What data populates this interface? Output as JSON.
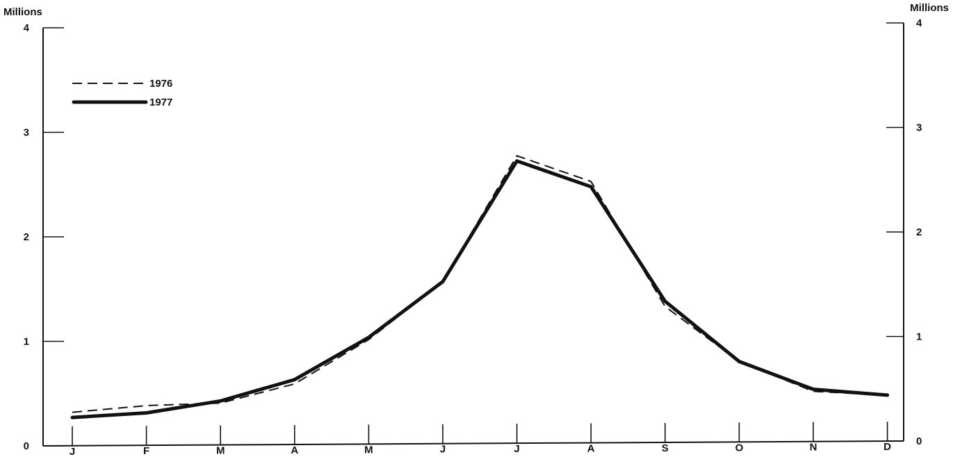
{
  "chart_data": {
    "type": "line",
    "categories": [
      "J",
      "F",
      "M",
      "A",
      "M",
      "J",
      "J",
      "A",
      "S",
      "O",
      "N",
      "D"
    ],
    "series": [
      {
        "name": "1976",
        "style": "dashed",
        "values": [
          0.32,
          0.38,
          0.4,
          0.58,
          1.0,
          1.55,
          2.75,
          2.5,
          1.3,
          0.77,
          0.48,
          0.44
        ]
      },
      {
        "name": "1977",
        "style": "solid",
        "values": [
          0.27,
          0.31,
          0.42,
          0.62,
          1.02,
          1.55,
          2.7,
          2.45,
          1.35,
          0.77,
          0.5,
          0.44
        ]
      }
    ],
    "y_ticks": [
      "0",
      "1",
      "2",
      "3",
      "4"
    ],
    "ylim": [
      0,
      4
    ],
    "left_axis_unit": "Millions",
    "right_axis_unit": "Millions",
    "legend_position": "top-left",
    "grid": false
  }
}
